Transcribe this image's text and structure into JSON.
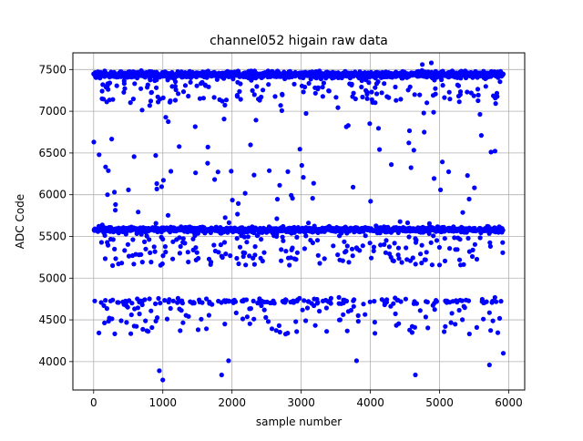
{
  "chart_data": {
    "type": "scatter",
    "title": "channel052 higain raw data",
    "xlabel": "sample number",
    "ylabel": "ADC Code",
    "xlim": [
      -300,
      6230
    ],
    "ylim": [
      3660,
      7700
    ],
    "xticks": [
      0,
      1000,
      2000,
      3000,
      4000,
      5000,
      6000
    ],
    "yticks": [
      4000,
      4500,
      5000,
      5500,
      6000,
      6500,
      7000,
      7500
    ],
    "grid": true,
    "marker_color": "#0000ff",
    "n_samples": 5920,
    "series": [
      {
        "bands": [
          {
            "center": 7440,
            "spread": 50,
            "fraction": 0.42
          },
          {
            "center": 7250,
            "spread": 150,
            "fraction": 0.05
          },
          {
            "center": 5580,
            "spread": 45,
            "fraction": 0.32
          },
          {
            "center": 5350,
            "spread": 200,
            "fraction": 0.07
          },
          {
            "center": 4720,
            "spread": 40,
            "fraction": 0.05
          },
          {
            "center": 4550,
            "spread": 220,
            "fraction": 0.05
          },
          {
            "center": 6500,
            "spread": 500,
            "fraction": 0.04
          }
        ],
        "outliers": [
          {
            "x": 950,
            "y": 3890
          },
          {
            "x": 1000,
            "y": 3780
          },
          {
            "x": 1850,
            "y": 3840
          },
          {
            "x": 4650,
            "y": 3840
          },
          {
            "x": 5720,
            "y": 3960
          },
          {
            "x": 5920,
            "y": 4100
          },
          {
            "x": 3800,
            "y": 4010
          },
          {
            "x": 1950,
            "y": 4010
          },
          {
            "x": 200,
            "y": 6000
          },
          {
            "x": 300,
            "y": 6030
          },
          {
            "x": 4880,
            "y": 7580
          },
          {
            "x": 4750,
            "y": 7560
          }
        ]
      }
    ]
  }
}
